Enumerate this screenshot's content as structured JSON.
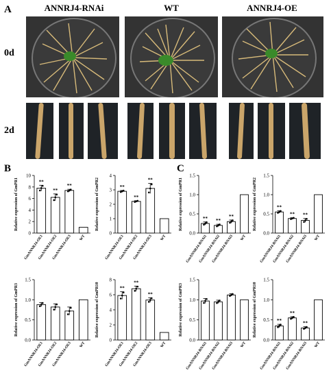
{
  "panels": {
    "a": "A",
    "b": "B",
    "c": "C"
  },
  "columns": [
    "ANNRJ4-RNAi",
    "WT",
    "ANNRJ4-OE"
  ],
  "rows": [
    "0d",
    "2d"
  ],
  "colors": {
    "bar_fill": "#ffffff",
    "bar_stroke": "#000000",
    "plate_bg": "#2b2b2b",
    "root": "#c9a96b",
    "seed": "#3a8a2a"
  },
  "chart_data": [
    {
      "type": "bar",
      "categories": [
        "GmANNRJ4-OE1",
        "GmANNRJ4-OE2",
        "GmANNRJ4-OE3",
        "WT"
      ],
      "values": [
        7.8,
        6.2,
        7.4,
        1.0
      ],
      "errors": [
        0.5,
        0.6,
        0.2,
        0
      ],
      "significance": [
        "**",
        "**",
        "**",
        ""
      ],
      "ylabel": "Relative expression of GmPR1",
      "ylim": [
        0,
        10
      ],
      "yticks": [
        0,
        2,
        4,
        6,
        8,
        10
      ]
    },
    {
      "type": "bar",
      "categories": [
        "GmANNRJ4-OE1",
        "GmANNRJ4-OE2",
        "GmANNRJ4-OE3",
        "WT"
      ],
      "values": [
        2.9,
        2.2,
        3.1,
        1.0
      ],
      "errors": [
        0.06,
        0.05,
        0.35,
        0
      ],
      "significance": [
        "**",
        "**",
        "**",
        ""
      ],
      "ylabel": "Relative expression of GmPR2",
      "ylim": [
        0,
        4
      ],
      "yticks": [
        0,
        1,
        2,
        3,
        4
      ]
    },
    {
      "type": "bar",
      "categories": [
        "GmANNRJ4-RNAi1",
        "GmANNRJ4-RNAi2",
        "GmANNRJ4-RNAi3",
        "WT"
      ],
      "values": [
        0.25,
        0.2,
        0.3,
        1.0
      ],
      "errors": [
        0.04,
        0.03,
        0.04,
        0
      ],
      "significance": [
        "**",
        "**",
        "**",
        ""
      ],
      "ylabel": "Relative expression of GmPR1",
      "ylim": [
        0,
        1.5
      ],
      "yticks": [
        0.0,
        0.5,
        1.0,
        1.5
      ]
    },
    {
      "type": "bar",
      "categories": [
        "GmANNRJ4-RNAi1",
        "GmANNRJ4-RNAi2",
        "GmANNRJ4-RNAi3",
        "WT"
      ],
      "values": [
        0.55,
        0.38,
        0.33,
        1.0
      ],
      "errors": [
        0.03,
        0.02,
        0.05,
        0
      ],
      "significance": [
        "**",
        "**",
        "**",
        ""
      ],
      "ylabel": "Relative expression of GmPR2",
      "ylim": [
        0,
        1.5
      ],
      "yticks": [
        0.0,
        0.5,
        1.0,
        1.5
      ]
    },
    {
      "type": "bar",
      "categories": [
        "GmANNRJ4-OE1",
        "GmANNRJ4-OE2",
        "GmANNRJ4-OE3",
        "WT"
      ],
      "values": [
        0.88,
        0.82,
        0.72,
        1.0
      ],
      "errors": [
        0.05,
        0.08,
        0.1,
        0
      ],
      "significance": [
        "",
        "",
        "",
        ""
      ],
      "ylabel": "Relative expression of GmPR3",
      "ylim": [
        0,
        1.5
      ],
      "yticks": [
        0.0,
        0.5,
        1.0,
        1.5
      ]
    },
    {
      "type": "bar",
      "categories": [
        "GmANNRJ4-OE1",
        "GmANNRJ4-OE2",
        "GmANNRJ4-OE3",
        "WT"
      ],
      "values": [
        5.9,
        6.8,
        5.3,
        1.0
      ],
      "errors": [
        0.5,
        0.35,
        0.3,
        0
      ],
      "significance": [
        "**",
        "**",
        "**",
        ""
      ],
      "ylabel": "Relative expression of GmPR10",
      "ylim": [
        0,
        8
      ],
      "yticks": [
        0,
        2,
        4,
        6,
        8
      ]
    },
    {
      "type": "bar",
      "categories": [
        "GmANNRJ4-RNAi1",
        "GmANNRJ4-RNAi2",
        "GmANNRJ4-RNAi3",
        "WT"
      ],
      "values": [
        0.97,
        0.95,
        1.12,
        1.0
      ],
      "errors": [
        0.06,
        0.04,
        0.03,
        0
      ],
      "significance": [
        "",
        "",
        "",
        ""
      ],
      "ylabel": "Relative expression of GmPR3",
      "ylim": [
        0,
        1.5
      ],
      "yticks": [
        0.0,
        0.5,
        1.0,
        1.5
      ]
    },
    {
      "type": "bar",
      "categories": [
        "GmANNRJ4-RNAi1",
        "GmANNRJ4-RNAi2",
        "GmANNRJ4-RNAi3",
        "WT"
      ],
      "values": [
        0.35,
        0.55,
        0.3,
        1.0
      ],
      "errors": [
        0.04,
        0.03,
        0.03,
        0
      ],
      "significance": [
        "**",
        "**",
        "**",
        ""
      ],
      "ylabel": "Relative expression of GmPR10",
      "ylim": [
        0,
        1.5
      ],
      "yticks": [
        0.0,
        0.5,
        1.0,
        1.5
      ]
    }
  ]
}
